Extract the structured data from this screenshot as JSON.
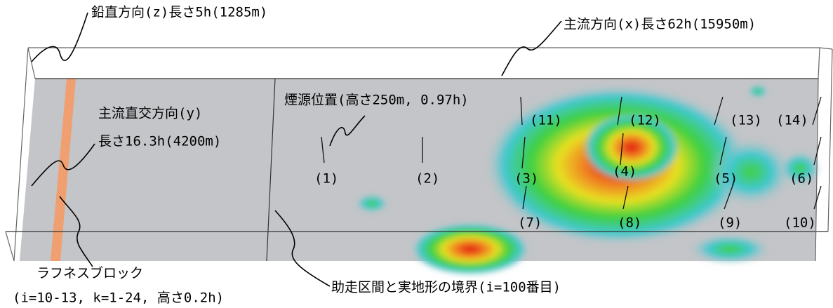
{
  "labels": {
    "vertical": "鉛直方向(z)長さ5h(1285m)",
    "streamwise": "主流方向(x)長さ62h(15950m)",
    "spanwise": "主流直交方向(y)",
    "spanwise_length": "長さ16.3h(4200m)",
    "source": "煙源位置(高さ250m, 0.97h)",
    "roughness": "ラフネスブロック",
    "roughness_detail": "(i=10-13, k=1-24, 高さ0.2h)",
    "boundary": "助走区間と実地形の境界(i=100番目)"
  },
  "points": [
    "(1)",
    "(2)",
    "(3)",
    "(4)",
    "(5)",
    "(6)",
    "(7)",
    "(8)",
    "(9)",
    "(10)",
    "(11)",
    "(12)",
    "(13)",
    "(14)"
  ]
}
